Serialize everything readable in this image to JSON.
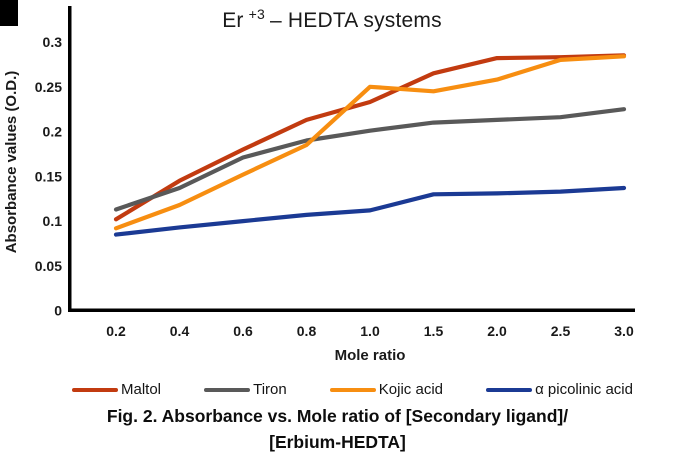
{
  "chart_data": {
    "type": "line",
    "title": {
      "prefix": "Er",
      "superscript": "+3",
      "suffix": "– HEDTA systems"
    },
    "xlabel": "Mole ratio",
    "ylabel": "Absorbance values (O.D.)",
    "categories": [
      "0.2",
      "0.4",
      "0.6",
      "0.8",
      "1.0",
      "1.5",
      "2.0",
      "2.5",
      "3.0"
    ],
    "y_ticks": [
      "0",
      "0.05",
      "0.1",
      "0.15",
      "0.2",
      "0.25",
      "0.3"
    ],
    "ylim": [
      0,
      0.3
    ],
    "grid": false,
    "legend_position": "bottom",
    "series": [
      {
        "name": "Maltol",
        "color": "#C23B10",
        "values": [
          0.102,
          0.145,
          0.18,
          0.213,
          0.233,
          0.265,
          0.282,
          0.283,
          0.285
        ]
      },
      {
        "name": "Tiron",
        "color": "#595959",
        "values": [
          0.113,
          0.137,
          0.171,
          0.19,
          0.201,
          0.21,
          0.213,
          0.216,
          0.225
        ]
      },
      {
        "name": "Kojic acid",
        "color": "#F78E11",
        "values": [
          0.092,
          0.118,
          0.152,
          0.185,
          0.25,
          0.245,
          0.258,
          0.28,
          0.284
        ]
      },
      {
        "name": "α picolinic acid",
        "color": "#1B3A94",
        "values": [
          0.085,
          0.093,
          0.1,
          0.107,
          0.112,
          0.13,
          0.131,
          0.133,
          0.137
        ]
      }
    ]
  },
  "caption": {
    "line1": "Fig. 2. Absorbance vs. Mole ratio of [Secondary ligand]/",
    "line2": "[Erbium-HEDTA]"
  }
}
